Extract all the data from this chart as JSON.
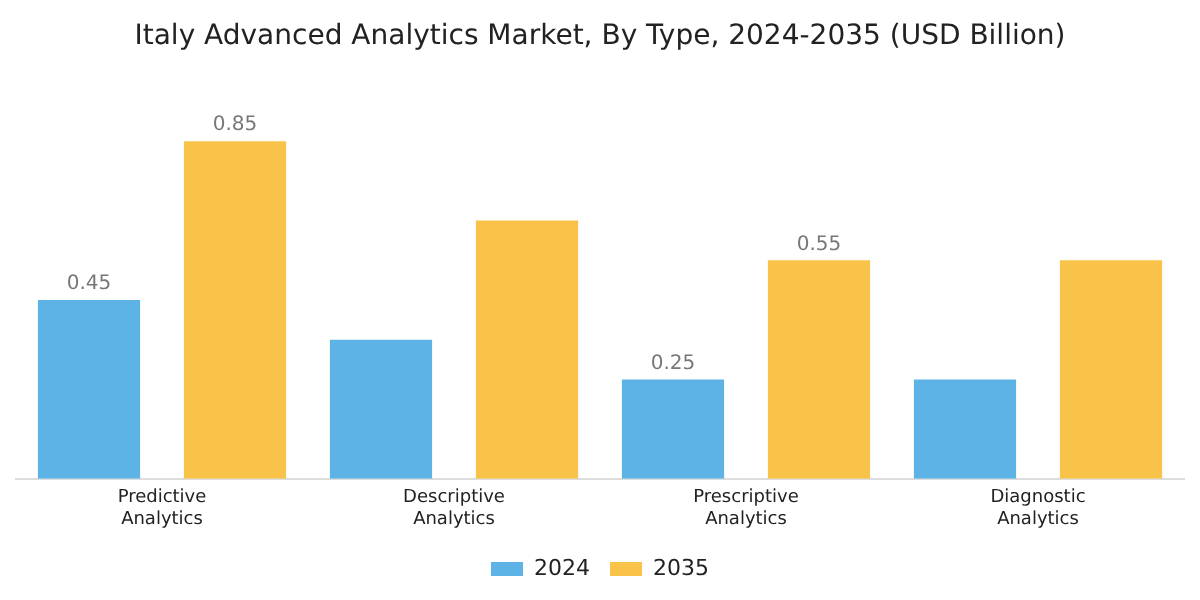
{
  "chart_data": {
    "type": "bar",
    "title": "Italy Advanced Analytics Market, By Type, 2024-2035 (USD Billion)",
    "categories": [
      "Predictive Analytics",
      "Descriptive Analytics",
      "Prescriptive Analytics",
      "Diagnostic Analytics"
    ],
    "series": [
      {
        "name": "2024",
        "color": "#5db3e6",
        "values": [
          0.45,
          0.35,
          0.25,
          0.25
        ],
        "value_labels": [
          "0.45",
          null,
          "0.25",
          null
        ]
      },
      {
        "name": "2035",
        "color": "#f9c34a",
        "values": [
          0.85,
          0.65,
          0.55,
          0.55
        ],
        "value_labels": [
          "0.85",
          null,
          "0.55",
          null
        ]
      }
    ],
    "legend": "bottom",
    "grid": false,
    "tick_labels": "x"
  }
}
